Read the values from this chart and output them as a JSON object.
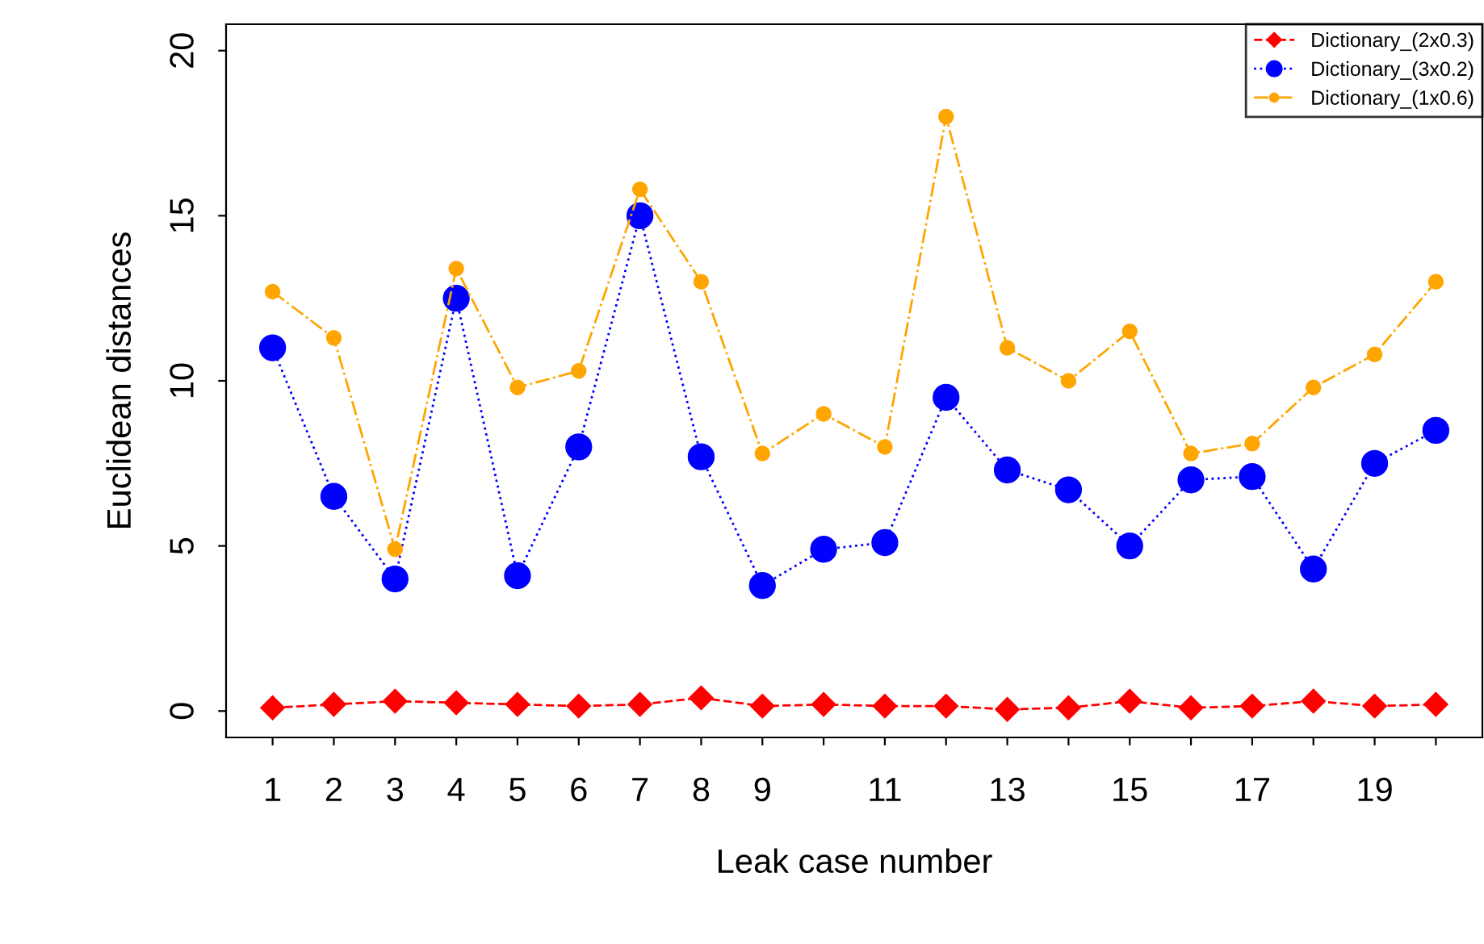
{
  "chart_data": {
    "type": "line",
    "xlabel": "Leak case number",
    "ylabel": "Euclidean distances",
    "x": [
      1,
      2,
      3,
      4,
      5,
      6,
      7,
      8,
      9,
      10,
      11,
      12,
      13,
      14,
      15,
      16,
      17,
      18,
      19,
      20
    ],
    "xlim": [
      0.24,
      20.76
    ],
    "ylim": [
      -0.8,
      20.8
    ],
    "xticks": [
      1,
      2,
      3,
      4,
      5,
      6,
      7,
      8,
      9,
      {
        "value": 10,
        "label": null
      },
      11,
      {
        "value": 12,
        "label": null
      },
      13,
      {
        "value": 14,
        "label": null
      },
      15,
      {
        "value": 16,
        "label": null
      },
      17,
      {
        "value": 18,
        "label": null
      },
      19,
      {
        "value": 20,
        "label": null
      }
    ],
    "yticks": [
      0,
      5,
      10,
      15,
      20
    ],
    "grid": false,
    "legend": "top right",
    "series": [
      {
        "name": "Dictionary_(2x0.3)",
        "color": "#ff0000",
        "marker": "diamond",
        "line_style": "dashed",
        "values": [
          0.1,
          0.2,
          0.3,
          0.25,
          0.2,
          0.15,
          0.2,
          0.4,
          0.15,
          0.2,
          0.15,
          0.15,
          0.05,
          0.1,
          0.3,
          0.1,
          0.15,
          0.3,
          0.15,
          0.2
        ]
      },
      {
        "name": "Dictionary_(3x0.2)",
        "color": "#0000ff",
        "marker": "circle",
        "line_style": "dotted",
        "values": [
          11.0,
          6.5,
          4.0,
          12.5,
          4.1,
          8.0,
          15.0,
          7.7,
          3.8,
          4.9,
          5.1,
          9.5,
          7.3,
          6.7,
          5.0,
          7.0,
          7.1,
          4.3,
          7.5,
          8.5
        ]
      },
      {
        "name": "Dictionary_(1x0.6)",
        "color": "#ffa500",
        "marker": "circle",
        "line_style": "dashdot",
        "values": [
          12.7,
          11.3,
          4.9,
          13.4,
          9.8,
          10.3,
          15.8,
          13.0,
          7.8,
          9.0,
          8.0,
          18.0,
          11.0,
          10.0,
          11.5,
          7.8,
          8.1,
          9.8,
          10.8,
          13.0
        ]
      }
    ]
  }
}
